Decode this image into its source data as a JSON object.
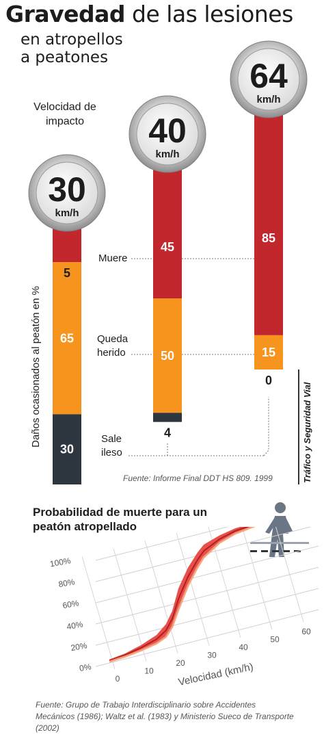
{
  "header": {
    "title_bold": "Gravedad",
    "title_rest": " de las lesiones",
    "subtitle_line1": "en atropellos",
    "subtitle_line2": "a peatones"
  },
  "bar_chart": {
    "velocity_label": "Velocidad de impacto",
    "y_axis_label": "Daños ocasionados al peatón en %",
    "unit": "km/h",
    "row_labels": {
      "muere": "Muere",
      "herido": "Queda herido",
      "ileso": "Sale ileso"
    },
    "source": "Fuente: Informe Final DDT HS 809. 1999",
    "brand": "Tráfico y Seguridad Vial",
    "colors": {
      "muere": "#c1272d",
      "herido": "#f7941d",
      "ileso": "#2e3740"
    }
  },
  "chart_data": [
    {
      "type": "bar",
      "stacked": true,
      "categories": [
        "30",
        "40",
        "64"
      ],
      "series": [
        {
          "name": "Muere",
          "values": [
            5,
            45,
            85
          ]
        },
        {
          "name": "Queda herido",
          "values": [
            65,
            50,
            15
          ]
        },
        {
          "name": "Sale ileso",
          "values": [
            30,
            4,
            0
          ]
        }
      ],
      "ylim": [
        0,
        100
      ]
    },
    {
      "type": "area",
      "title": "Probabilidad de muerte para un peatón atropellado",
      "xlabel": "Velocidad (km/h)",
      "x_ticks": [
        "0",
        "10",
        "20",
        "30",
        "40",
        "50",
        "60"
      ],
      "y_ticks": [
        "0%",
        "20%",
        "40%",
        "60%",
        "80%",
        "100%"
      ],
      "xlim": [
        0,
        60
      ],
      "ylim": [
        0,
        100
      ],
      "series": [
        {
          "x": [
            0,
            5,
            10,
            15,
            18,
            20,
            22,
            25,
            28,
            30,
            35,
            40,
            50,
            60
          ],
          "y_low": [
            2,
            3,
            5,
            8,
            12,
            20,
            35,
            55,
            70,
            78,
            88,
            93,
            97,
            98
          ],
          "y_high": [
            4,
            6,
            10,
            16,
            24,
            35,
            55,
            72,
            84,
            90,
            95,
            98,
            99,
            100
          ]
        }
      ],
      "source": "Fuente: Grupo de Trabajo Interdisciplinario sobre Accidentes Mecánicos (1986); Waltz et al. (1983) y Ministerio Sueco de Transporte (2002)"
    }
  ]
}
